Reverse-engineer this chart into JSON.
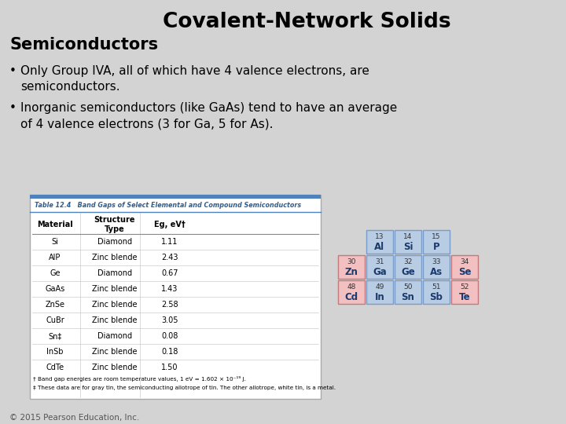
{
  "title": "Covalent-Network Solids",
  "subtitle": "Semiconductors",
  "bullet1": "Only Group IVA, all of which have 4 valence electrons, are\nsemiconductors.",
  "bullet2": "Inorganic semiconductors (like GaAs) tend to have an average\nof 4 valence electrons (3 for Ga, 5 for As).",
  "slide_bg": "#d3d3d3",
  "table_title": "Table 12.4   Band Gaps of Select Elemental and Compound Semiconductors",
  "table_header": [
    "Material",
    "Structure\nType",
    "Eg, eV†"
  ],
  "table_data": [
    [
      "Si",
      "Diamond",
      "1.11"
    ],
    [
      "AlP",
      "Zinc blende",
      "2.43"
    ],
    [
      "Ge",
      "Diamond",
      "0.67"
    ],
    [
      "GaAs",
      "Zinc blende",
      "1.43"
    ],
    [
      "ZnSe",
      "Zinc blende",
      "2.58"
    ],
    [
      "CuBr",
      "Zinc blende",
      "3.05"
    ],
    [
      "Sn‡",
      "Diamond",
      "0.08"
    ],
    [
      "InSb",
      "Zinc blende",
      "0.18"
    ],
    [
      "CdTe",
      "Zinc blende",
      "1.50"
    ]
  ],
  "footnote1": "† Band gap energies are room temperature values, 1 eV = 1.602 × 10⁻¹⁹ J.",
  "footnote2": "‡ These data are for gray tin, the semiconducting allotrope of tin. The other allotrope, white tin, is a metal.",
  "copyright": "© 2015 Pearson Education, Inc.",
  "pt_elements": [
    {
      "num": "13",
      "sym": "Al",
      "col": 1,
      "row": 0,
      "color": "#b8cce4",
      "border": "#7a9cc8"
    },
    {
      "num": "14",
      "sym": "Si",
      "col": 2,
      "row": 0,
      "color": "#b8cce4",
      "border": "#7a9cc8"
    },
    {
      "num": "15",
      "sym": "P",
      "col": 3,
      "row": 0,
      "color": "#b8cce4",
      "border": "#7a9cc8"
    },
    {
      "num": "30",
      "sym": "Zn",
      "col": 0,
      "row": 1,
      "color": "#f2c0c0",
      "border": "#c47a7a"
    },
    {
      "num": "31",
      "sym": "Ga",
      "col": 1,
      "row": 1,
      "color": "#b8cce4",
      "border": "#7a9cc8"
    },
    {
      "num": "32",
      "sym": "Ge",
      "col": 2,
      "row": 1,
      "color": "#b8cce4",
      "border": "#7a9cc8"
    },
    {
      "num": "33",
      "sym": "As",
      "col": 3,
      "row": 1,
      "color": "#b8cce4",
      "border": "#7a9cc8"
    },
    {
      "num": "34",
      "sym": "Se",
      "col": 4,
      "row": 1,
      "color": "#f2c0c0",
      "border": "#c47a7a"
    },
    {
      "num": "48",
      "sym": "Cd",
      "col": 0,
      "row": 2,
      "color": "#f2c0c0",
      "border": "#c47a7a"
    },
    {
      "num": "49",
      "sym": "In",
      "col": 1,
      "row": 2,
      "color": "#b8cce4",
      "border": "#7a9cc8"
    },
    {
      "num": "50",
      "sym": "Sn",
      "col": 2,
      "row": 2,
      "color": "#b8cce4",
      "border": "#7a9cc8"
    },
    {
      "num": "51",
      "sym": "Sb",
      "col": 3,
      "row": 2,
      "color": "#b8cce4",
      "border": "#7a9cc8"
    },
    {
      "num": "52",
      "sym": "Te",
      "col": 4,
      "row": 2,
      "color": "#f2c0c0",
      "border": "#c47a7a"
    }
  ]
}
